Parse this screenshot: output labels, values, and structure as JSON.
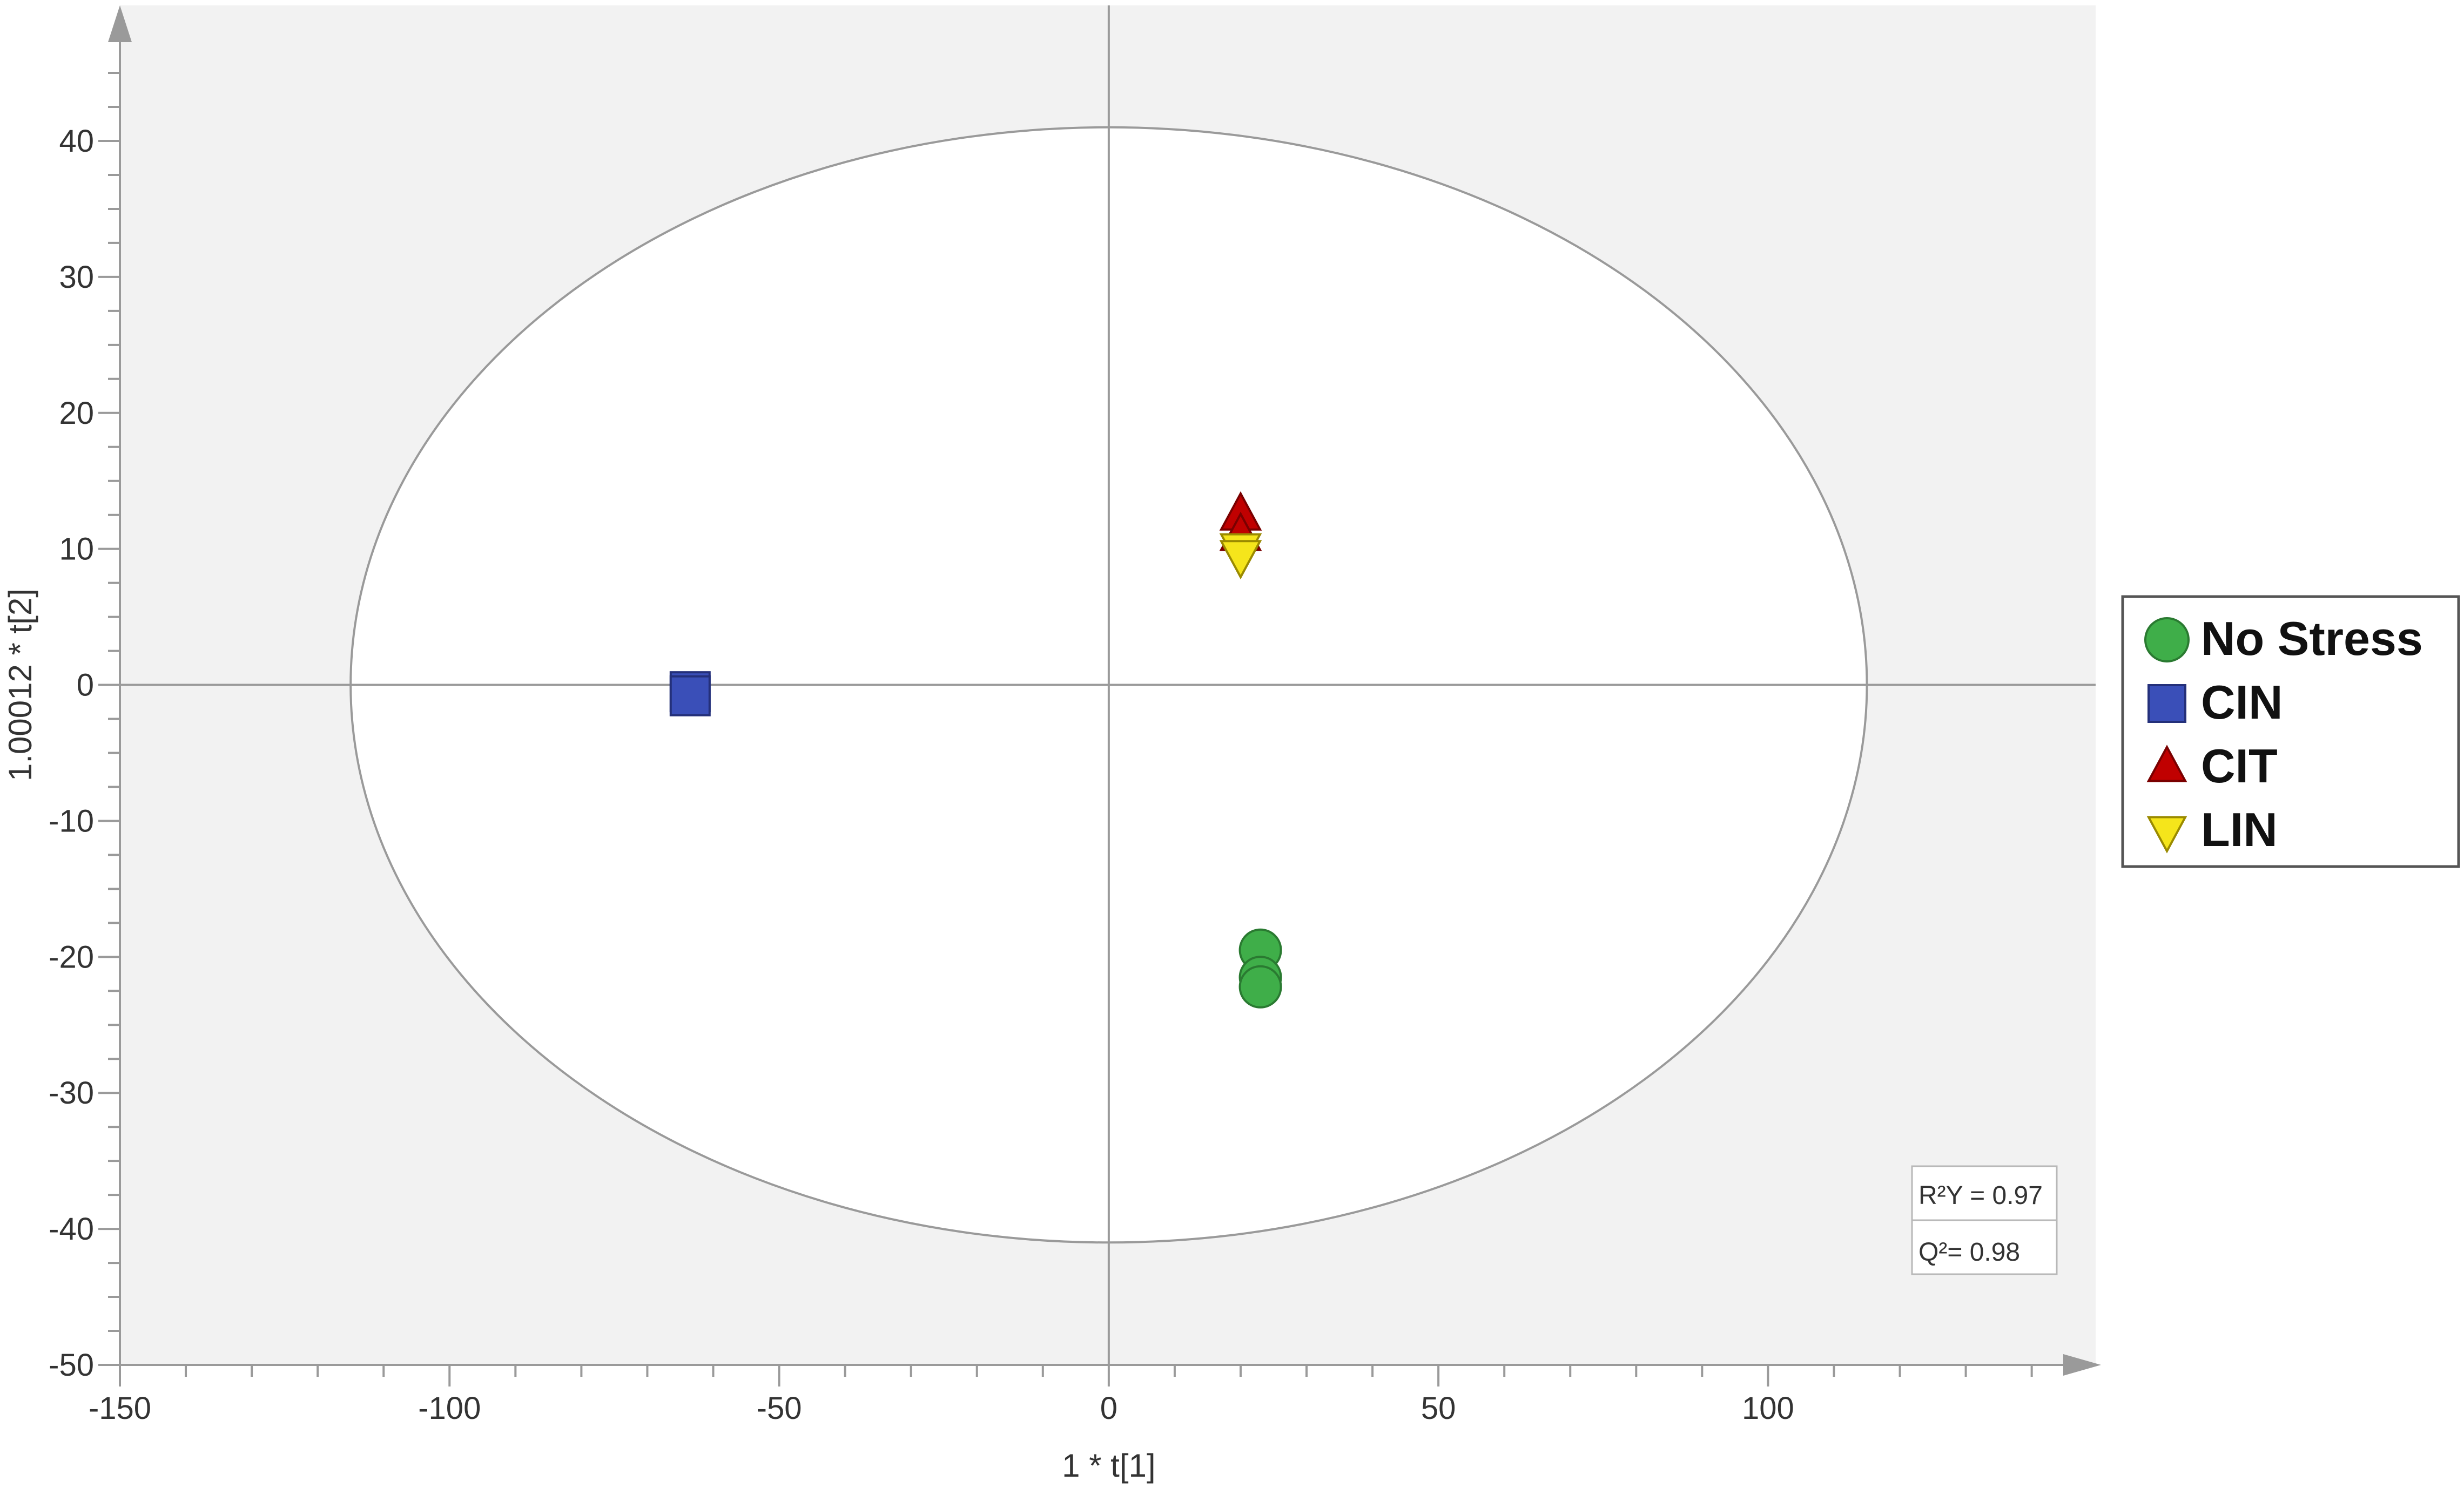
{
  "chart_data": {
    "type": "scatter",
    "xlabel": "1 * t[1]",
    "ylabel": "1.00012 * t[2]",
    "xlim": [
      -150,
      150
    ],
    "ylim": [
      -50,
      50
    ],
    "x_ticks": [
      -150,
      -100,
      -50,
      0,
      50,
      100
    ],
    "y_ticks": [
      -50,
      -40,
      -30,
      -20,
      -10,
      0,
      10,
      20,
      30,
      40
    ],
    "grid": false,
    "ellipse": {
      "cx": 0,
      "cy": 0,
      "rx": 115,
      "ry": 41
    },
    "legend_position": "right",
    "series": [
      {
        "name": "No Stress",
        "marker": "circle",
        "color": "#3fae49",
        "points": [
          {
            "x": 23,
            "y": -19.5
          },
          {
            "x": 23,
            "y": -21.5
          },
          {
            "x": 23,
            "y": -22.2
          }
        ]
      },
      {
        "name": "CIN",
        "marker": "square",
        "color": "#3a4fb8",
        "points": [
          {
            "x": -63.5,
            "y": -0.5
          },
          {
            "x": -63.5,
            "y": -0.8
          }
        ]
      },
      {
        "name": "CIT",
        "marker": "triangle-up",
        "color": "#c00000",
        "points": [
          {
            "x": 20,
            "y": 12.5
          },
          {
            "x": 20,
            "y": 11
          }
        ]
      },
      {
        "name": "LIN",
        "marker": "triangle-down",
        "color": "#f5e51b",
        "points": [
          {
            "x": 20,
            "y": 10
          },
          {
            "x": 20,
            "y": 9.5
          }
        ]
      }
    ],
    "stats": {
      "r2y_label": "R²Y = 0.97",
      "q2_label": "Q²= 0.98"
    }
  }
}
